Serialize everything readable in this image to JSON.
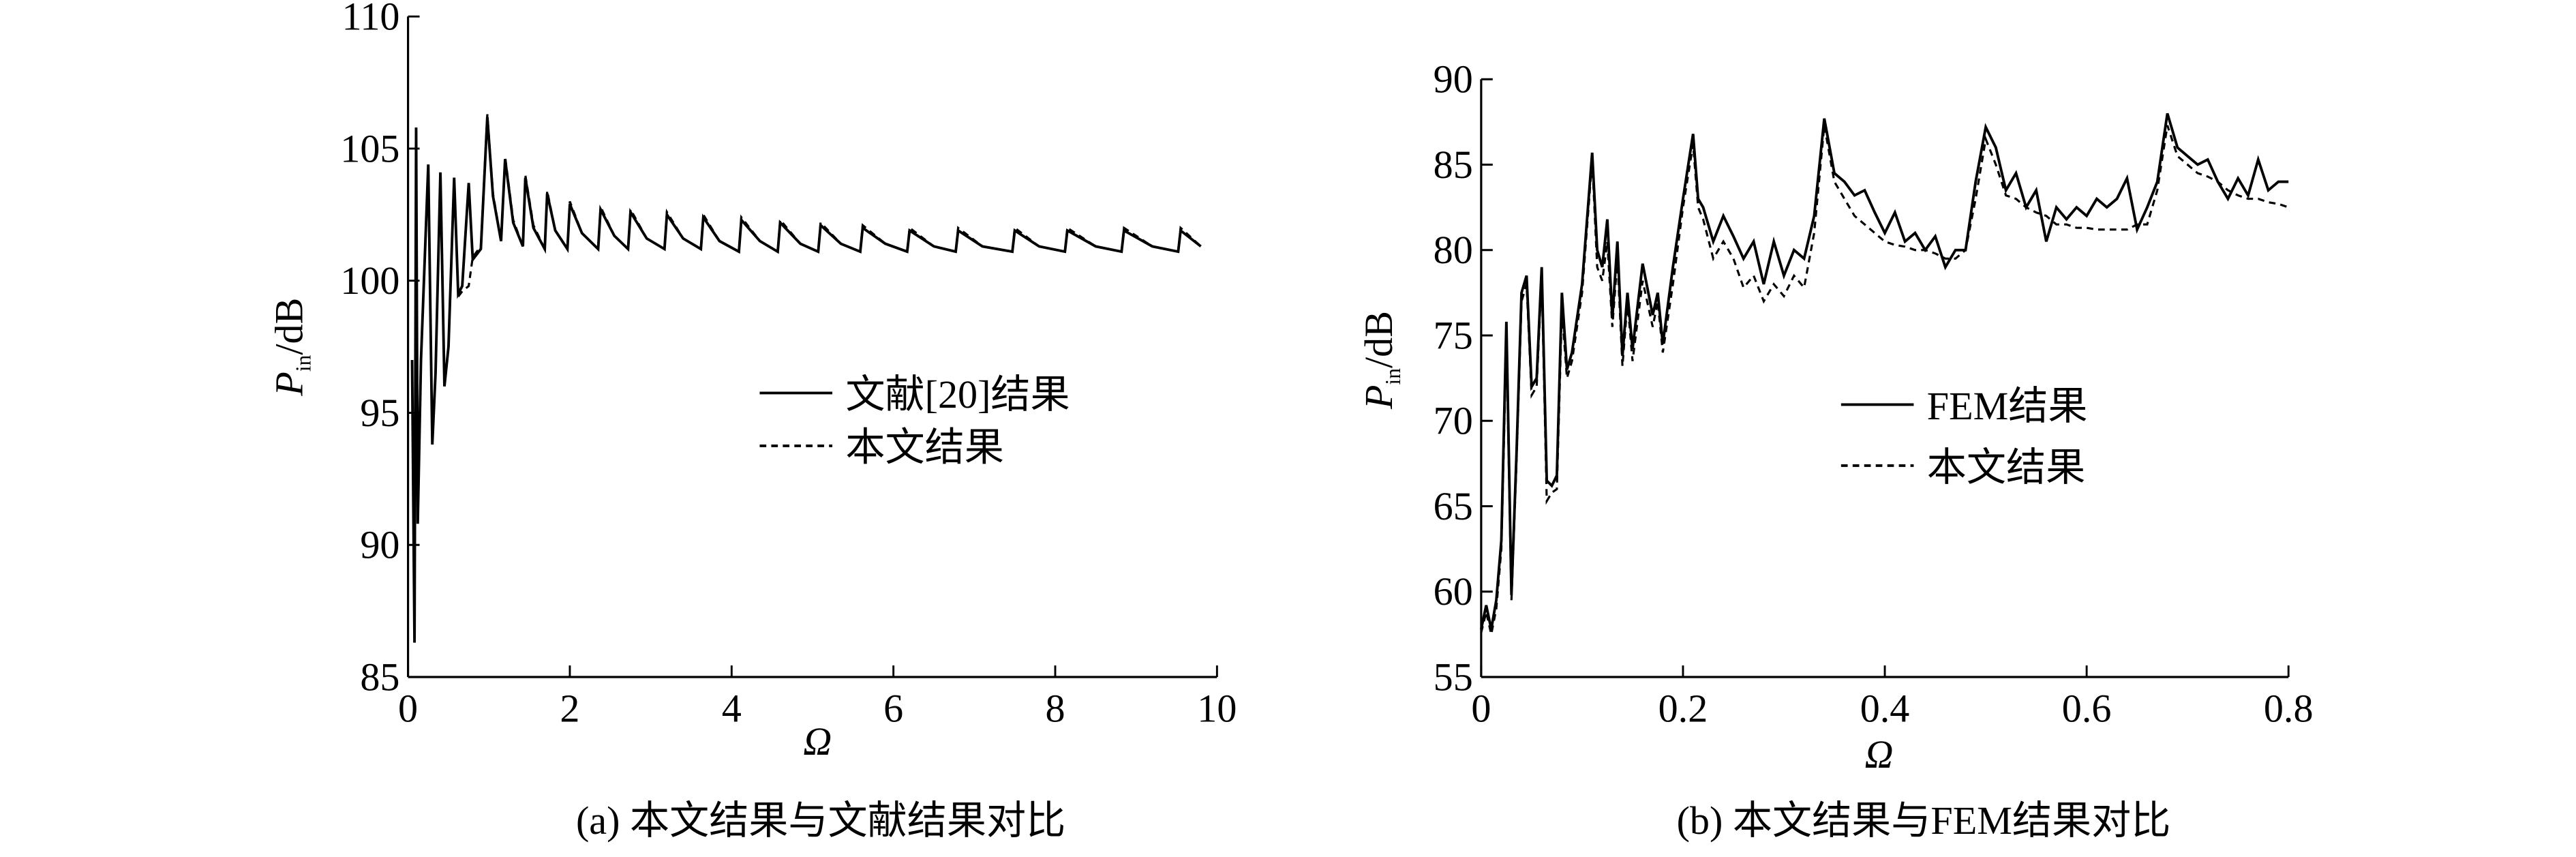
{
  "chart_data": [
    {
      "type": "line",
      "caption": "(a) 本文结果与文献结果对比",
      "xlabel": "Ω",
      "ylabel_symbol": "P",
      "ylabel_subscript": "in",
      "ylabel_unit": "/dB",
      "xlim": [
        0,
        10
      ],
      "ylim": [
        85,
        110
      ],
      "xticks": [
        0,
        2,
        4,
        6,
        8,
        10
      ],
      "yticks": [
        85,
        90,
        95,
        100,
        105,
        110
      ],
      "x": [
        0.05,
        0.08,
        0.1,
        0.12,
        0.16,
        0.25,
        0.3,
        0.34,
        0.4,
        0.45,
        0.5,
        0.57,
        0.62,
        0.67,
        0.75,
        0.8,
        0.9,
        0.98,
        1.05,
        1.15,
        1.2,
        1.3,
        1.42,
        1.45,
        1.55,
        1.69,
        1.72,
        1.82,
        1.97,
        2.0,
        2.15,
        2.35,
        2.38,
        2.55,
        2.72,
        2.75,
        2.95,
        3.17,
        3.2,
        3.4,
        3.62,
        3.65,
        3.85,
        4.09,
        4.12,
        4.35,
        4.57,
        4.6,
        4.85,
        5.07,
        5.1,
        5.35,
        5.59,
        5.62,
        5.9,
        6.17,
        6.2,
        6.5,
        6.77,
        6.8,
        7.1,
        7.47,
        7.5,
        7.8,
        8.12,
        8.15,
        8.5,
        8.82,
        8.85,
        9.2,
        9.52,
        9.55,
        9.8
      ],
      "series": [
        {
          "name": "文献[20]结果",
          "color": "#000000",
          "dash": "solid",
          "values": [
            97,
            86.3,
            105.8,
            90.8,
            97,
            104.4,
            93.8,
            96.5,
            104.1,
            96,
            97.5,
            103.9,
            99.5,
            99.8,
            103.7,
            100.8,
            101.2,
            106.2,
            103.2,
            101.5,
            104.6,
            102.2,
            101.3,
            103.9,
            102,
            101.2,
            103.3,
            101.9,
            101.2,
            102.9,
            101.8,
            101.2,
            102.7,
            101.7,
            101.2,
            102.6,
            101.6,
            101.2,
            102.5,
            101.6,
            101.2,
            102.4,
            101.5,
            101.1,
            102.3,
            101.5,
            101.1,
            102.2,
            101.4,
            101.1,
            102.1,
            101.4,
            101.1,
            102.0,
            101.4,
            101.1,
            101.9,
            101.3,
            101.1,
            101.9,
            101.3,
            101.1,
            101.9,
            101.3,
            101.1,
            101.9,
            101.3,
            101.1,
            101.9,
            101.3,
            101.1,
            101.9,
            101.3
          ]
        },
        {
          "name": "本文结果",
          "color": "#000000",
          "dash": "dashed",
          "values": [
            null,
            null,
            null,
            null,
            null,
            null,
            null,
            null,
            null,
            null,
            null,
            null,
            99.4,
            99.6,
            99.8,
            100.9,
            101.3,
            106.3,
            103.3,
            101.5,
            104.7,
            102.3,
            101.3,
            104.0,
            102.1,
            101.2,
            103.4,
            101.9,
            101.2,
            103.0,
            101.8,
            101.2,
            102.8,
            101.7,
            101.2,
            102.7,
            101.6,
            101.2,
            102.6,
            101.6,
            101.2,
            102.5,
            101.5,
            101.1,
            102.4,
            101.5,
            101.1,
            102.3,
            101.4,
            101.1,
            102.2,
            101.4,
            101.1,
            102.1,
            101.4,
            101.1,
            102.0,
            101.3,
            101.1,
            102.0,
            101.3,
            101.1,
            102.0,
            101.3,
            101.1,
            102.0,
            101.3,
            101.1,
            102.0,
            101.3,
            101.1,
            102.0,
            101.3
          ]
        }
      ]
    },
    {
      "type": "line",
      "caption": "(b) 本文结果与FEM结果对比",
      "xlabel": "Ω",
      "ylabel_symbol": "P",
      "ylabel_subscript": "in",
      "ylabel_unit": "/dB",
      "xlim": [
        0,
        0.8
      ],
      "ylim": [
        55,
        90
      ],
      "xticks": [
        0,
        0.2,
        0.4,
        0.6,
        0.8
      ],
      "yticks": [
        55,
        60,
        65,
        70,
        75,
        80,
        85,
        90
      ],
      "x": [
        0,
        0.005,
        0.01,
        0.015,
        0.02,
        0.025,
        0.03,
        0.035,
        0.04,
        0.045,
        0.05,
        0.055,
        0.06,
        0.065,
        0.07,
        0.075,
        0.08,
        0.085,
        0.09,
        0.1,
        0.11,
        0.115,
        0.12,
        0.125,
        0.13,
        0.135,
        0.14,
        0.145,
        0.15,
        0.16,
        0.17,
        0.175,
        0.18,
        0.19,
        0.2,
        0.21,
        0.215,
        0.22,
        0.23,
        0.24,
        0.25,
        0.26,
        0.27,
        0.28,
        0.29,
        0.3,
        0.31,
        0.32,
        0.33,
        0.34,
        0.35,
        0.36,
        0.37,
        0.38,
        0.39,
        0.4,
        0.41,
        0.42,
        0.43,
        0.44,
        0.45,
        0.46,
        0.47,
        0.48,
        0.49,
        0.5,
        0.51,
        0.52,
        0.53,
        0.54,
        0.55,
        0.56,
        0.57,
        0.58,
        0.59,
        0.6,
        0.61,
        0.62,
        0.63,
        0.64,
        0.65,
        0.66,
        0.67,
        0.68,
        0.69,
        0.7,
        0.71,
        0.72,
        0.73,
        0.74,
        0.75,
        0.76,
        0.77,
        0.78,
        0.79,
        0.8
      ],
      "series": [
        {
          "name": "FEM结果",
          "color": "#000000",
          "dash": "solid",
          "values": [
            57.8,
            59.2,
            57.8,
            59.5,
            63,
            75.8,
            59.8,
            68,
            77.5,
            78.5,
            72,
            72.5,
            79,
            66.5,
            66.2,
            66.8,
            77.5,
            73,
            74,
            78,
            85.7,
            80,
            79,
            81.8,
            76,
            80.5,
            73.8,
            77.5,
            74.2,
            79.2,
            76.2,
            77.5,
            74.5,
            79,
            83,
            86.8,
            83,
            82.5,
            80.5,
            82,
            80.8,
            79.5,
            80.5,
            78,
            80.5,
            78.5,
            80,
            79.5,
            82,
            87.7,
            84.5,
            84,
            83.2,
            83.5,
            82.2,
            81,
            82.2,
            80.5,
            81,
            80,
            80.8,
            79,
            80,
            80,
            84,
            87.2,
            86,
            83.5,
            84.5,
            82.5,
            83.5,
            80.5,
            82.5,
            81.8,
            82.5,
            82,
            83,
            82.5,
            83,
            84.2,
            81.2,
            82.5,
            84,
            88,
            86,
            85.5,
            85,
            85.3,
            84,
            83,
            84.2,
            83.2,
            85.3,
            83.5,
            84,
            84
          ]
        },
        {
          "name": "本文结果",
          "color": "#000000",
          "dash": "dashed",
          "values": [
            57.6,
            58.8,
            57.5,
            59,
            62.5,
            74.8,
            59.5,
            67.5,
            77,
            78,
            71.5,
            72,
            78.5,
            65.3,
            65.8,
            66,
            76.5,
            72.5,
            73.5,
            77.5,
            85.3,
            79,
            78.2,
            80.5,
            75.5,
            79.5,
            73.2,
            77,
            73.5,
            78.2,
            75.5,
            77,
            74,
            78,
            82.5,
            86.2,
            82.5,
            81.8,
            79.5,
            80.5,
            79.5,
            77.8,
            78.5,
            77,
            78,
            77.3,
            78.5,
            77.8,
            81,
            87.3,
            84,
            83,
            82,
            81.5,
            81,
            80.5,
            80.3,
            80.2,
            80,
            80,
            79.8,
            79.5,
            79.5,
            80,
            83,
            86.5,
            85,
            83.2,
            83,
            82.5,
            82.2,
            82,
            81.5,
            81.5,
            81.3,
            81.3,
            81.2,
            81.2,
            81.2,
            81.2,
            81.5,
            81.5,
            83.5,
            87.3,
            85.5,
            85,
            84.5,
            84.3,
            84,
            83.5,
            83.2,
            83,
            83,
            82.8,
            82.7,
            82.5
          ]
        }
      ]
    }
  ]
}
